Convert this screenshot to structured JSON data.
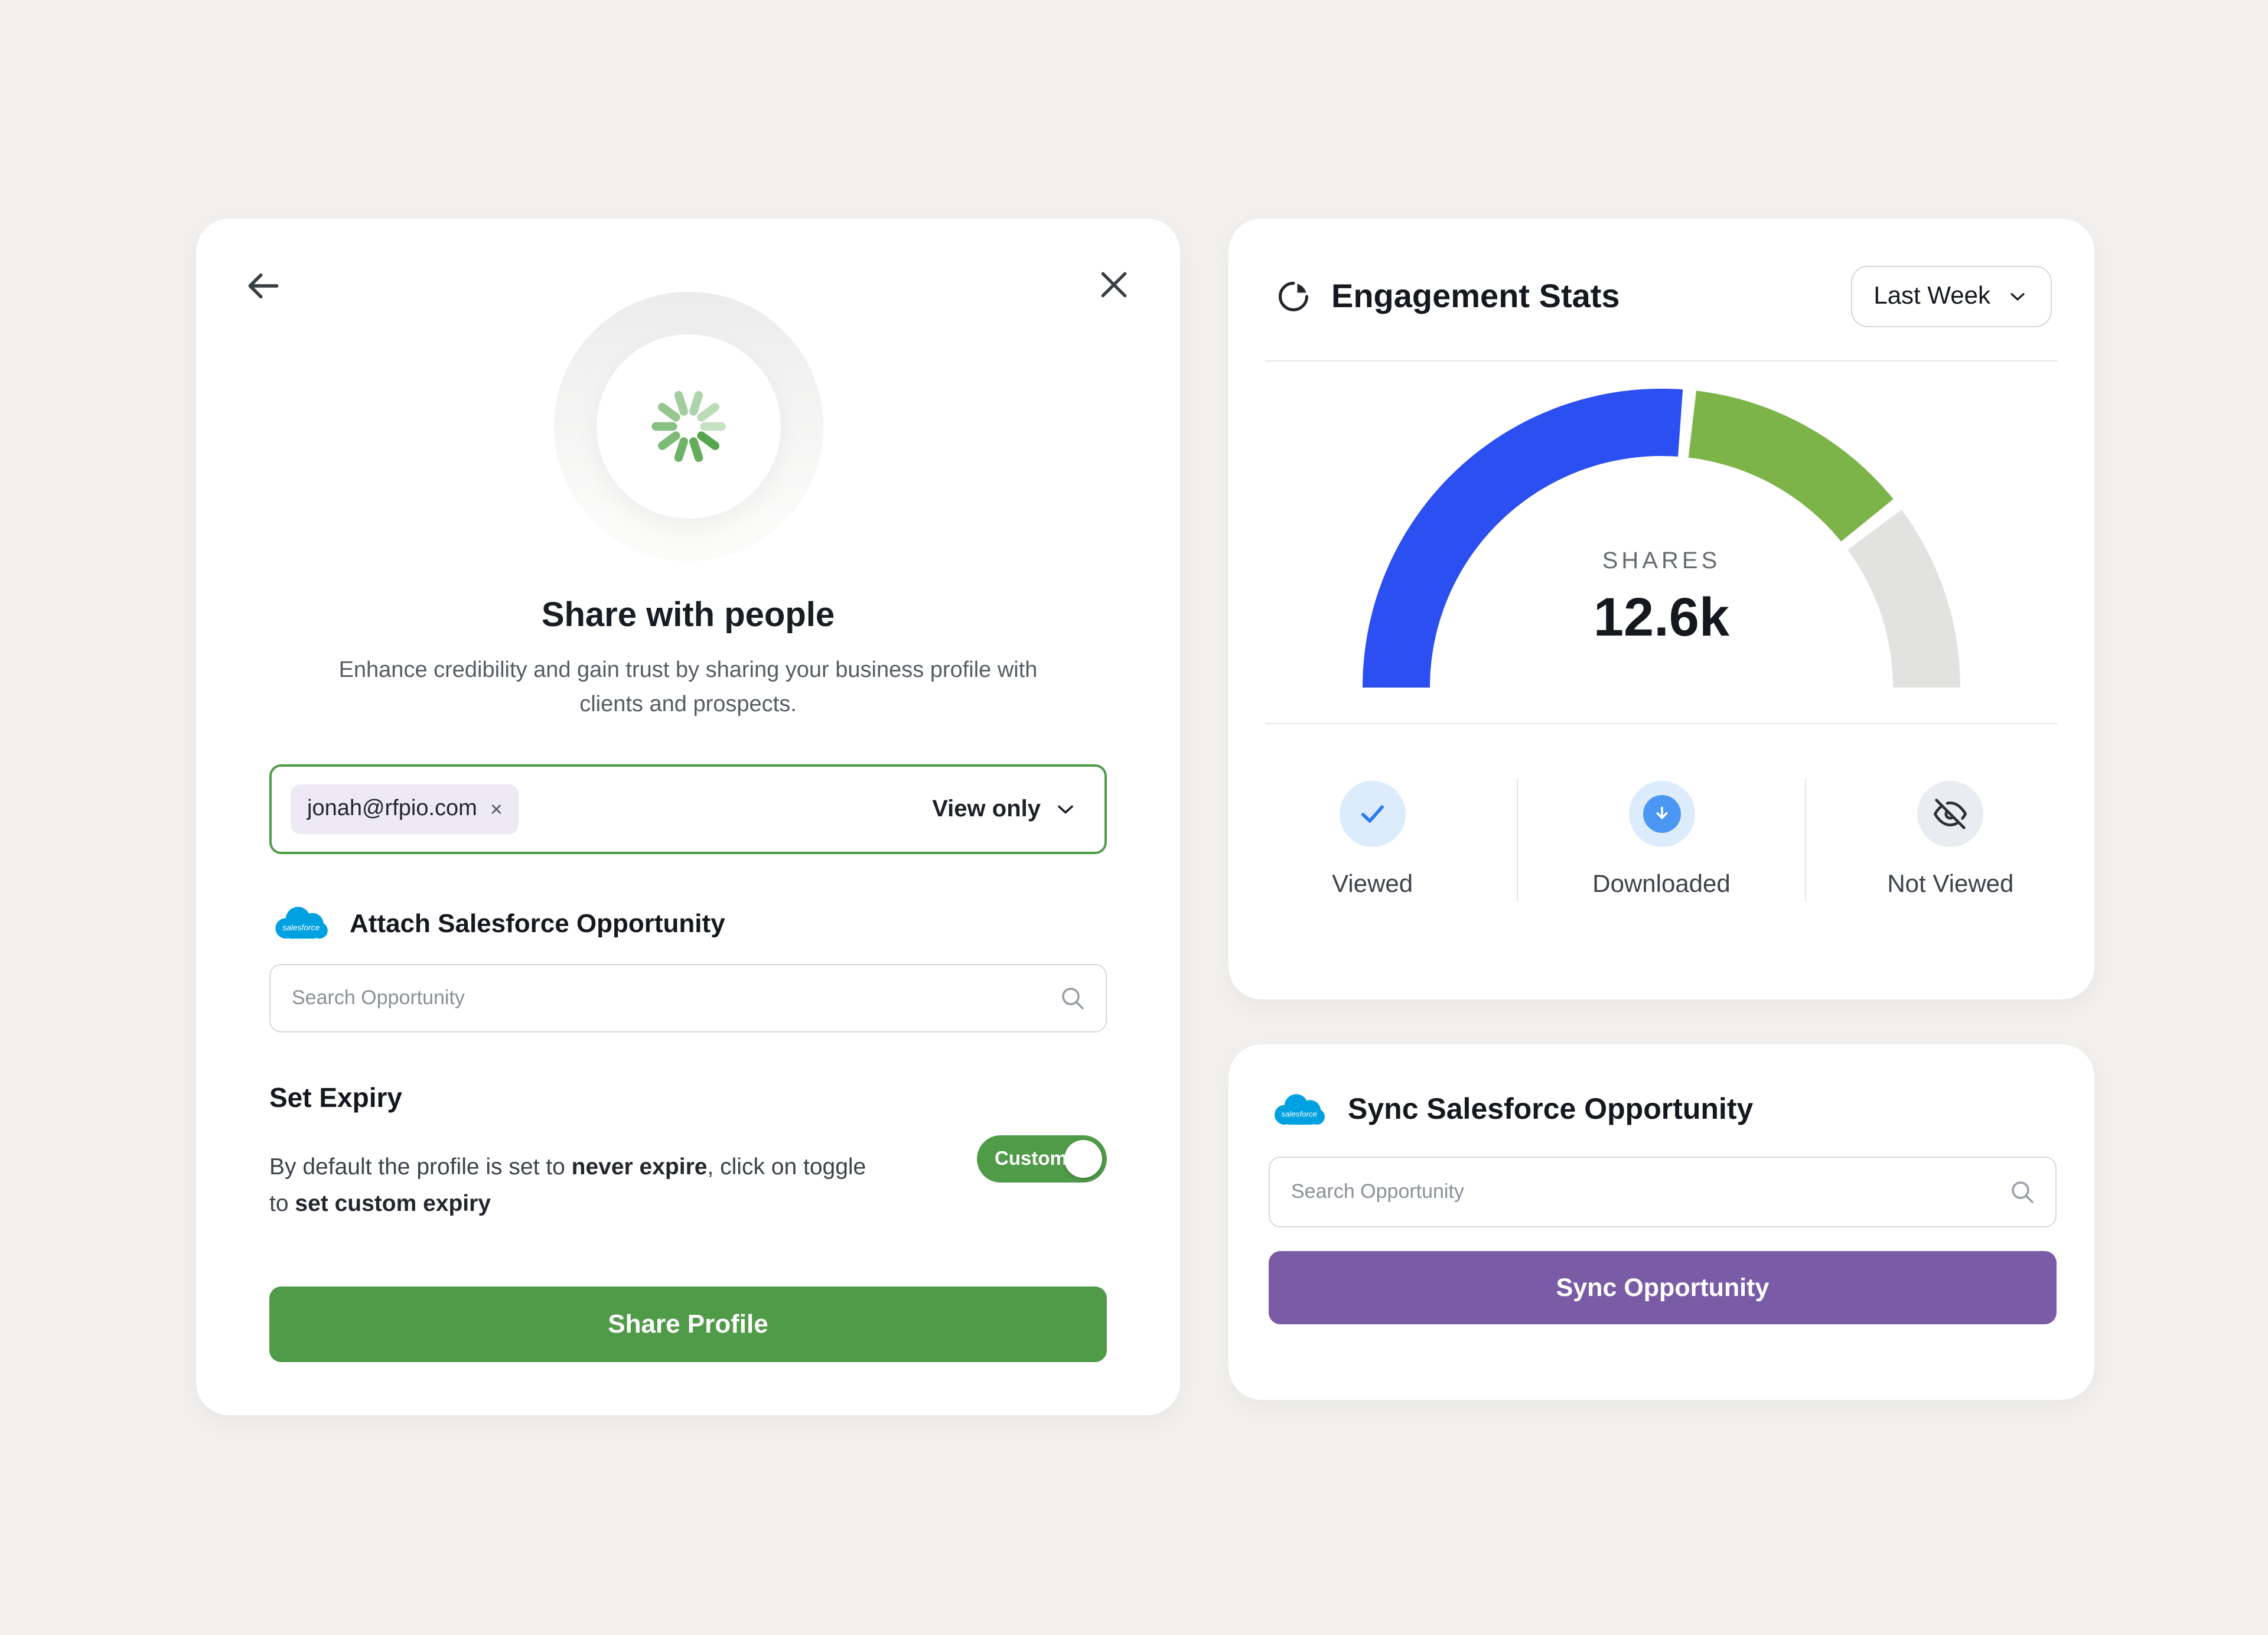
{
  "share_modal": {
    "title": "Share with people",
    "description": "Enhance credibility and gain trust by sharing your business profile with clients and prospects.",
    "recipient": {
      "email": "jonah@rfpio.com",
      "remove_label": "×",
      "permission": "View only"
    },
    "attach_section": {
      "label": "Attach Salesforce Opportunity",
      "search_placeholder": "Search Opportunity"
    },
    "expiry": {
      "heading": "Set Expiry",
      "text_p1": "By default the profile is set to ",
      "text_b1": "never expire",
      "text_p2": ", click on toggle to ",
      "text_b2": "set custom expiry",
      "toggle_label": "Custom",
      "toggle_state": "on"
    },
    "share_button": "Share Profile"
  },
  "engagement": {
    "title": "Engagement Stats",
    "range_selector": "Last Week",
    "stats": [
      {
        "label": "Viewed",
        "icon": "check-icon"
      },
      {
        "label": "Downloaded",
        "icon": "download-circle-icon"
      },
      {
        "label": "Not Viewed",
        "icon": "eye-off-icon"
      }
    ]
  },
  "sync_card": {
    "title": "Sync Salesforce Opportunity",
    "search_placeholder": "Search Opportunity",
    "button": "Sync Opportunity"
  },
  "chart_data": {
    "type": "gauge",
    "title": "Engagement Stats",
    "center_label": "SHARES",
    "center_value": "12.6k",
    "range_label": "Last Week",
    "start_angle": 180,
    "end_angle": 0,
    "segments": [
      {
        "name": "Viewed",
        "value": 53,
        "color": "#2b4ff0"
      },
      {
        "name": "Downloaded",
        "value": 26,
        "color": "#7cb44a"
      },
      {
        "name": "Not Viewed",
        "value": 21,
        "color": "#e2e2e0"
      }
    ]
  },
  "colors": {
    "background": "#f1f0ee",
    "primary_green": "#4f9b48",
    "primary_purple": "#7a5ba6",
    "salesforce_blue": "#00a1e0",
    "gauge_blue": "#2b4ff0",
    "gauge_green": "#7cb44a",
    "gauge_gray": "#e2e2e0"
  }
}
